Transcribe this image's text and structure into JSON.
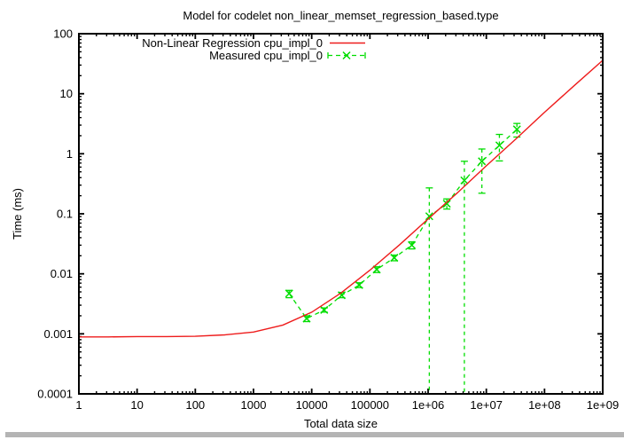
{
  "window": {
    "background": "#ffffff",
    "bottom_bar_color": "#b4b4b4"
  },
  "chart_data": {
    "type": "line",
    "title": "Model for codelet non_linear_memset_regression_based.type",
    "xlabel": "Total data size",
    "ylabel": "Time (ms)",
    "x_scale": "log",
    "y_scale": "log",
    "xlim": [
      1,
      1000000000
    ],
    "ylim": [
      0.0001,
      100
    ],
    "grid": false,
    "x_tick_labels": [
      "1",
      "10",
      "100",
      "1000",
      "10000",
      "100000",
      "1e+06",
      "1e+07",
      "1e+08",
      "1e+09"
    ],
    "y_tick_labels": [
      "0.0001",
      "0.001",
      "0.01",
      "0.1",
      "1",
      "10",
      "100"
    ],
    "legend": {
      "position": "top-center",
      "entries": [
        "Non-Linear Regression cpu_impl_0",
        "Measured cpu_impl_0"
      ]
    },
    "series": [
      {
        "name": "Non-Linear Regression cpu_impl_0",
        "kind": "line",
        "color": "#ee1c1c",
        "dash": "solid",
        "x": [
          1,
          3.2,
          10,
          32,
          100,
          320,
          1000,
          3200,
          10000,
          32000,
          100000,
          320000,
          1000000,
          3200000,
          10000000,
          32000000,
          100000000,
          320000000,
          1000000000
        ],
        "y": [
          0.00089,
          0.00089,
          0.0009,
          0.0009,
          0.00091,
          0.00096,
          0.00107,
          0.0014,
          0.0023,
          0.0048,
          0.0115,
          0.0302,
          0.082,
          0.225,
          0.63,
          1.75,
          4.9,
          13.5,
          36
        ]
      },
      {
        "name": "Measured cpu_impl_0",
        "kind": "errorline",
        "color": "#00dd00",
        "dash": "dashed",
        "marker": "x",
        "x": [
          4096,
          8192,
          16384,
          32768,
          65536,
          131072,
          262144,
          524288,
          1048576,
          2097152,
          4194304,
          8388608,
          16777216,
          33554432
        ],
        "y": [
          0.0047,
          0.0018,
          0.0025,
          0.0044,
          0.0065,
          0.0118,
          0.0185,
          0.03,
          0.091,
          0.147,
          0.36,
          0.75,
          1.38,
          2.55
        ],
        "y_lo": [
          0.004,
          0.0016,
          0.0023,
          0.004,
          0.0059,
          0.0105,
          0.0165,
          0.026,
          0,
          0.12,
          0,
          0.22,
          0.76,
          1.9
        ],
        "y_hi": [
          0.0053,
          0.002,
          0.0027,
          0.0049,
          0.0071,
          0.0131,
          0.0205,
          0.034,
          0.27,
          0.177,
          0.75,
          1.2,
          2.1,
          3.2
        ]
      }
    ]
  }
}
